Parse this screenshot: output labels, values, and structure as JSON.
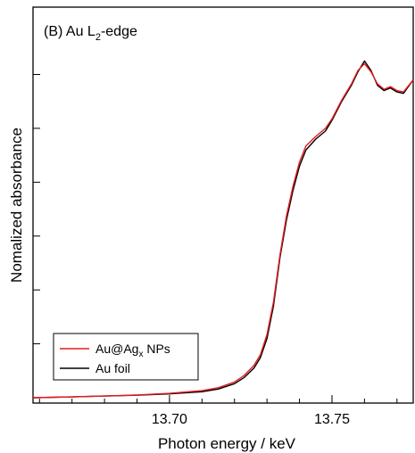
{
  "chart_data": {
    "type": "line",
    "panel_label_prefix": "(B) Au L",
    "panel_label_sub": "2",
    "panel_label_suffix": "-edge",
    "xlabel": "Photon energy / keV",
    "ylabel": "Nomalized absorbance",
    "xlim": [
      13.658,
      13.775
    ],
    "ylim": [
      -0.02,
      1.45
    ],
    "x_ticks": [
      13.7,
      13.75
    ],
    "x_tick_labels": [
      "13.70",
      "13.75"
    ],
    "x_minor_step": 0.01,
    "y_ticks": [
      0.2,
      0.4,
      0.6,
      0.8,
      1.0,
      1.2
    ],
    "grid": false,
    "legend_position": "bottom-left",
    "series": [
      {
        "name": "Au foil",
        "name_prefix": "Au foil",
        "color": "#000000",
        "x": [
          13.658,
          13.67,
          13.68,
          13.69,
          13.7,
          13.71,
          13.715,
          13.72,
          13.723,
          13.726,
          13.728,
          13.73,
          13.732,
          13.734,
          13.736,
          13.738,
          13.74,
          13.742,
          13.745,
          13.748,
          13.75,
          13.753,
          13.756,
          13.758,
          13.76,
          13.762,
          13.764,
          13.766,
          13.768,
          13.77,
          13.772,
          13.775
        ],
        "y": [
          0.0,
          0.003,
          0.006,
          0.009,
          0.014,
          0.022,
          0.032,
          0.052,
          0.075,
          0.11,
          0.15,
          0.22,
          0.34,
          0.52,
          0.66,
          0.77,
          0.86,
          0.92,
          0.96,
          0.99,
          1.03,
          1.1,
          1.16,
          1.21,
          1.25,
          1.215,
          1.16,
          1.14,
          1.15,
          1.135,
          1.13,
          1.18
        ]
      },
      {
        "name": "Au@Agx NPs",
        "name_prefix": "Au@Ag",
        "name_sub": "x",
        "name_suffix": " NPs",
        "color": "#e41a1c",
        "x": [
          13.658,
          13.67,
          13.68,
          13.69,
          13.7,
          13.71,
          13.715,
          13.72,
          13.723,
          13.726,
          13.728,
          13.73,
          13.732,
          13.734,
          13.736,
          13.738,
          13.74,
          13.742,
          13.745,
          13.748,
          13.75,
          13.753,
          13.756,
          13.758,
          13.76,
          13.762,
          13.764,
          13.766,
          13.768,
          13.77,
          13.772,
          13.775
        ],
        "y": [
          0.0,
          0.003,
          0.006,
          0.01,
          0.016,
          0.026,
          0.037,
          0.058,
          0.083,
          0.12,
          0.16,
          0.235,
          0.355,
          0.53,
          0.675,
          0.785,
          0.875,
          0.935,
          0.97,
          1.0,
          1.035,
          1.105,
          1.165,
          1.215,
          1.24,
          1.21,
          1.165,
          1.145,
          1.155,
          1.14,
          1.135,
          1.18
        ]
      }
    ],
    "legend_order": [
      1,
      0
    ]
  }
}
